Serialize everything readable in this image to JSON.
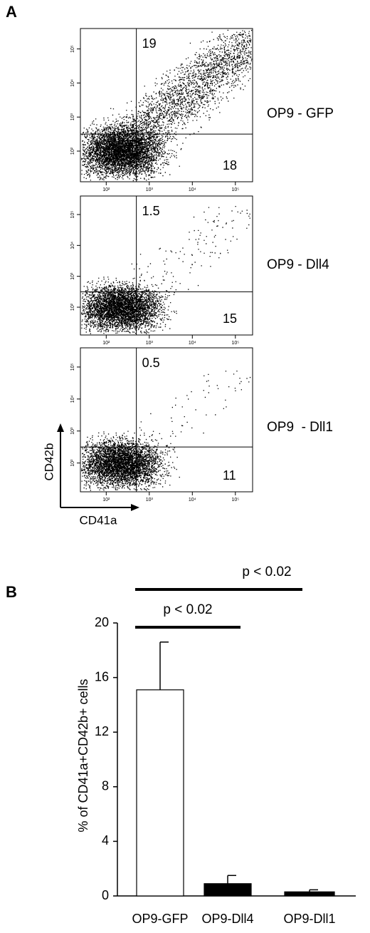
{
  "chart_data": [
    {
      "type": "flow",
      "panel": "A",
      "x_label": "CD41a",
      "y_label": "CD42b",
      "xlim": [
        1.4,
        5.4
      ],
      "ylim": [
        1.1,
        5.6
      ],
      "xticks": [
        {
          "value": 2,
          "label": "10²"
        },
        {
          "value": 3,
          "label": "10³"
        },
        {
          "value": 4,
          "label": "10⁴"
        },
        {
          "value": 5,
          "label": "10⁵"
        }
      ],
      "yticks": [
        {
          "value": 2,
          "label": "10²"
        },
        {
          "value": 3,
          "label": "10³"
        },
        {
          "value": 4,
          "label": "10⁴"
        },
        {
          "value": 5,
          "label": "10⁵"
        }
      ],
      "gate": {
        "x": 2.7,
        "y": 2.5
      },
      "plots": [
        {
          "name": "OP9 - GFP",
          "upper_right": 19,
          "lower_right": 18
        },
        {
          "name": "OP9 - Dll4",
          "upper_right": 1.5,
          "lower_right": 15
        },
        {
          "name": "OP9  - Dll1",
          "upper_right": 0.5,
          "lower_right": 11
        }
      ]
    },
    {
      "type": "bar",
      "panel": "B",
      "y_label": "% of CD41a+CD42b+ cells",
      "categories": [
        "OP9-GFP",
        "OP9-Dll4",
        "OP9-Dll1"
      ],
      "values": [
        15.1,
        0.9,
        0.3
      ],
      "errors": [
        3.5,
        0.6,
        0.15
      ],
      "colors": [
        "#ffffff",
        "#000000",
        "#000000"
      ],
      "ylim": [
        0,
        20
      ],
      "yticks": [
        0,
        4,
        8,
        12,
        16,
        20
      ],
      "annotations": [
        "p < 0.02",
        "p < 0.02"
      ]
    }
  ]
}
